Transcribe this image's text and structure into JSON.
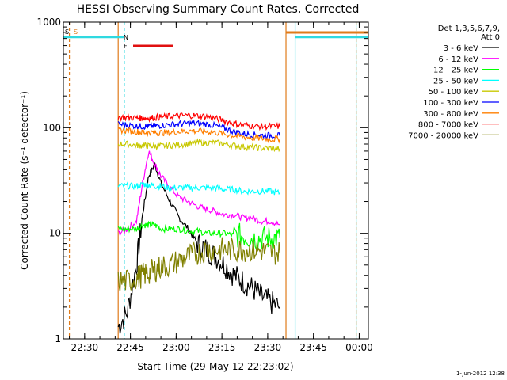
{
  "chart_data": {
    "type": "line",
    "title": "HESSI Observing Summary Count Rates, Corrected",
    "xlabel": "Start Time (29-May-12 22:23:02)",
    "ylabel": "Corrected Count Rate (s⁻¹ detector⁻¹)",
    "yscale": "log",
    "ylim": [
      1,
      1000
    ],
    "xlim": [
      "22:23:02",
      "00:03:00"
    ],
    "x_ticks": [
      "22:30",
      "22:45",
      "23:00",
      "23:15",
      "23:30",
      "23:45",
      "00:00"
    ],
    "y_ticks": [
      "1",
      "10",
      "100",
      "1000"
    ],
    "legend_title": [
      "Det 1,3,5,6,7,9,",
      "Att 0"
    ],
    "legend_position": "right",
    "timestamp": "1-Jun-2012 12:38",
    "flags": [
      {
        "label": "S",
        "color": "#e07b1a"
      },
      {
        "label": "N",
        "color": "#2fd9e0"
      },
      {
        "label": "F",
        "color": "#e01010"
      }
    ],
    "series": [
      {
        "name": "3 - 6 keV",
        "color": "#000000",
        "x": [
          "22:41",
          "22:44",
          "22:47",
          "22:49",
          "22:51",
          "22:53",
          "22:55",
          "22:58",
          "23:01",
          "23:04",
          "23:07",
          "23:10",
          "23:13",
          "23:16",
          "23:19",
          "23:22",
          "23:25",
          "23:28",
          "23:31",
          "23:34"
        ],
        "values": [
          1.3,
          1.8,
          5,
          15,
          35,
          45,
          30,
          20,
          14,
          11,
          8,
          7,
          6,
          5,
          4,
          3.5,
          3,
          2.5,
          2.2,
          2
        ]
      },
      {
        "name": "6 - 12 keV",
        "color": "#ff00ff",
        "x": [
          "22:41",
          "22:44",
          "22:47",
          "22:49",
          "22:51",
          "22:53",
          "22:55",
          "22:58",
          "23:01",
          "23:04",
          "23:07",
          "23:10",
          "23:13",
          "23:16",
          "23:19",
          "23:22",
          "23:25",
          "23:28",
          "23:31",
          "23:34"
        ],
        "values": [
          10,
          11,
          13,
          30,
          60,
          45,
          35,
          27,
          22,
          20,
          18,
          17,
          16,
          15,
          15,
          14,
          14,
          13,
          13,
          12
        ]
      },
      {
        "name": "12 - 25 keV",
        "color": "#00ff00",
        "x": [
          "22:41",
          "22:44",
          "22:47",
          "22:49",
          "22:51",
          "22:53",
          "22:55",
          "22:58",
          "23:01",
          "23:04",
          "23:07",
          "23:10",
          "23:13",
          "23:16",
          "23:19",
          "23:22",
          "23:25",
          "23:28",
          "23:31",
          "23:34"
        ],
        "values": [
          11,
          11,
          11,
          12,
          12,
          12,
          11,
          11,
          11,
          10.5,
          10.5,
          10,
          10,
          10,
          9.5,
          9.5,
          9,
          9,
          9,
          9
        ]
      },
      {
        "name": "25 - 50 keV",
        "color": "#00ffff",
        "x": [
          "22:41",
          "22:44",
          "22:47",
          "22:49",
          "22:51",
          "22:53",
          "22:55",
          "22:58",
          "23:01",
          "23:04",
          "23:07",
          "23:10",
          "23:13",
          "23:16",
          "23:19",
          "23:22",
          "23:25",
          "23:28",
          "23:31",
          "23:34"
        ],
        "values": [
          28,
          28,
          28,
          29,
          29,
          28,
          28,
          27,
          27,
          27,
          27,
          27,
          27,
          26,
          26,
          25,
          25,
          25,
          25,
          24
        ]
      },
      {
        "name": "50 - 100 keV",
        "color": "#c8c800",
        "x": [
          "22:41",
          "22:44",
          "22:47",
          "22:49",
          "22:51",
          "22:53",
          "22:55",
          "22:58",
          "23:01",
          "23:04",
          "23:07",
          "23:10",
          "23:13",
          "23:16",
          "23:19",
          "23:22",
          "23:25",
          "23:28",
          "23:31",
          "23:34"
        ],
        "values": [
          70,
          70,
          68,
          68,
          67,
          67,
          67,
          68,
          69,
          70,
          72,
          72,
          72,
          70,
          68,
          66,
          65,
          64,
          64,
          63
        ]
      },
      {
        "name": "100 - 300 keV",
        "color": "#0000ff",
        "x": [
          "22:41",
          "22:44",
          "22:47",
          "22:49",
          "22:51",
          "22:53",
          "22:55",
          "22:58",
          "23:01",
          "23:04",
          "23:07",
          "23:10",
          "23:13",
          "23:16",
          "23:19",
          "23:22",
          "23:25",
          "23:28",
          "23:31",
          "23:34"
        ],
        "values": [
          108,
          106,
          104,
          103,
          103,
          104,
          105,
          107,
          109,
          110,
          110,
          108,
          104,
          98,
          92,
          88,
          86,
          85,
          85,
          84
        ]
      },
      {
        "name": "300 - 800 keV",
        "color": "#ff7f00",
        "x": [
          "22:41",
          "22:44",
          "22:47",
          "22:49",
          "22:51",
          "22:53",
          "22:55",
          "22:58",
          "23:01",
          "23:04",
          "23:07",
          "23:10",
          "23:13",
          "23:16",
          "23:19",
          "23:22",
          "23:25",
          "23:28",
          "23:31",
          "23:34"
        ],
        "values": [
          95,
          94,
          92,
          90,
          90,
          90,
          90,
          90,
          92,
          93,
          93,
          92,
          90,
          87,
          84,
          82,
          80,
          79,
          78,
          78
        ]
      },
      {
        "name": "800 - 7000 keV",
        "color": "#ff0000",
        "x": [
          "22:41",
          "22:44",
          "22:47",
          "22:49",
          "22:51",
          "22:53",
          "22:55",
          "22:58",
          "23:01",
          "23:04",
          "23:07",
          "23:10",
          "23:13",
          "23:16",
          "23:19",
          "23:22",
          "23:25",
          "23:28",
          "23:31",
          "23:34"
        ],
        "values": [
          126,
          125,
          124,
          123,
          124,
          125,
          126,
          128,
          130,
          131,
          130,
          128,
          122,
          116,
          110,
          106,
          104,
          103,
          103,
          103
        ]
      },
      {
        "name": "7000 - 20000 keV",
        "color": "#808000",
        "x": [
          "22:41",
          "22:44",
          "22:47",
          "22:49",
          "22:51",
          "22:53",
          "22:55",
          "22:58",
          "23:01",
          "23:04",
          "23:07",
          "23:10",
          "23:13",
          "23:16",
          "23:19",
          "23:22",
          "23:25",
          "23:28",
          "23:31",
          "23:34"
        ],
        "values": [
          3.5,
          3.5,
          3.8,
          4,
          4.2,
          4.5,
          4.8,
          5,
          5.5,
          6,
          6.5,
          7,
          7,
          7,
          7,
          7,
          7,
          6.8,
          6.6,
          6.5
        ]
      }
    ]
  }
}
